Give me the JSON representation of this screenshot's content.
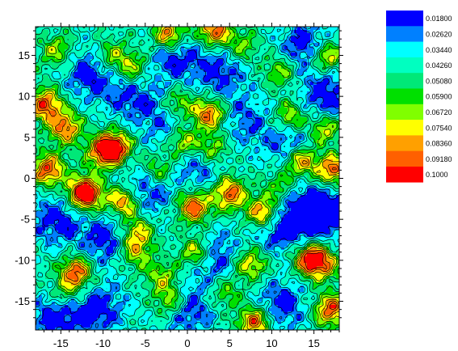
{
  "chart_data": {
    "type": "heatmap",
    "subtype": "filled-contour",
    "title": "",
    "xlabel": "",
    "ylabel": "",
    "xlim": [
      -18,
      18
    ],
    "ylim": [
      -18.5,
      18.5
    ],
    "x_ticks": [
      -15,
      -10,
      -5,
      0,
      5,
      10,
      15
    ],
    "x_tick_labels": [
      "-15",
      "-10",
      "-5",
      "0",
      "5",
      "10",
      "15"
    ],
    "y_ticks": [
      15,
      10,
      5,
      0,
      -5,
      -10,
      -15
    ],
    "y_tick_labels": [
      "15",
      "10",
      "5",
      "0",
      "-5",
      "-10",
      "-15"
    ],
    "grid": false,
    "legend_placement": "top-right",
    "levels": [
      {
        "label": "0.01800",
        "value": 0.018,
        "color": "#0000ff"
      },
      {
        "label": "0.02620",
        "value": 0.0262,
        "color": "#0080ff"
      },
      {
        "label": "0.03440",
        "value": 0.0344,
        "color": "#00ffff"
      },
      {
        "label": "0.04260",
        "value": 0.0426,
        "color": "#00ffc0"
      },
      {
        "label": "0.05080",
        "value": 0.0508,
        "color": "#00e878"
      },
      {
        "label": "0.05900",
        "value": 0.059,
        "color": "#00e000"
      },
      {
        "label": "0.06720",
        "value": 0.0672,
        "color": "#80ff00"
      },
      {
        "label": "0.07540",
        "value": 0.0754,
        "color": "#ffff00"
      },
      {
        "label": "0.08360",
        "value": 0.0836,
        "color": "#ffa000"
      },
      {
        "label": "0.09180",
        "value": 0.0918,
        "color": "#ff6000"
      },
      {
        "label": "0.1000",
        "value": 0.1,
        "color": "#ff0000"
      }
    ],
    "hotspots": [
      {
        "x": -16.8,
        "y": 9,
        "v": 0.1
      },
      {
        "x": -14.5,
        "y": 6.2,
        "v": 0.095
      },
      {
        "x": -8.5,
        "y": 3.8,
        "v": 0.1
      },
      {
        "x": -10,
        "y": 3.2,
        "v": 0.094
      },
      {
        "x": -12.5,
        "y": -1.5,
        "v": 0.088
      },
      {
        "x": -11.8,
        "y": -2.2,
        "v": 0.09
      },
      {
        "x": -7.5,
        "y": -2.8,
        "v": 0.1
      },
      {
        "x": -6,
        "y": -6.5,
        "v": 0.085
      },
      {
        "x": -6.2,
        "y": -9,
        "v": 0.08
      },
      {
        "x": -13.2,
        "y": -11.5,
        "v": 0.1
      },
      {
        "x": -2.2,
        "y": 17.5,
        "v": 0.1
      },
      {
        "x": 3.2,
        "y": 18,
        "v": 0.1
      },
      {
        "x": 2.5,
        "y": 7.8,
        "v": 0.1
      },
      {
        "x": -0.5,
        "y": 4.5,
        "v": 0.09
      },
      {
        "x": 3,
        "y": 3.5,
        "v": 0.08
      },
      {
        "x": 5,
        "y": -1.8,
        "v": 0.1
      },
      {
        "x": 0.8,
        "y": -3.5,
        "v": 0.1
      },
      {
        "x": 9,
        "y": -4.2,
        "v": 0.1
      },
      {
        "x": 13.5,
        "y": 2.2,
        "v": 0.1
      },
      {
        "x": 17.2,
        "y": 1,
        "v": 0.1
      },
      {
        "x": 16.5,
        "y": 14.8,
        "v": 0.09
      },
      {
        "x": 16.2,
        "y": 6,
        "v": 0.085
      },
      {
        "x": 12.2,
        "y": 7.5,
        "v": 0.082
      },
      {
        "x": 14.5,
        "y": -9.8,
        "v": 0.1
      },
      {
        "x": 16,
        "y": -10.5,
        "v": 0.085
      },
      {
        "x": 17,
        "y": -16,
        "v": 0.1
      },
      {
        "x": 1,
        "y": -9,
        "v": 0.092
      },
      {
        "x": 7.5,
        "y": -10.5,
        "v": 0.085
      },
      {
        "x": -2,
        "y": -15,
        "v": 0.082
      },
      {
        "x": 8,
        "y": -17.5,
        "v": 0.1
      },
      {
        "x": -6.5,
        "y": 13.5,
        "v": 0.08
      },
      {
        "x": -15.5,
        "y": 15.5,
        "v": 0.075
      },
      {
        "x": -16.5,
        "y": 1,
        "v": 0.1
      },
      {
        "x": 11,
        "y": 13,
        "v": 0.075
      },
      {
        "x": 6.5,
        "y": 16,
        "v": 0.072
      },
      {
        "x": -1,
        "y": 9,
        "v": 0.078
      },
      {
        "x": -3.5,
        "y": 1,
        "v": 0.078
      },
      {
        "x": 11,
        "y": -1,
        "v": 0.07
      },
      {
        "x": -3,
        "y": -12,
        "v": 0.075
      },
      {
        "x": 4.5,
        "y": -14,
        "v": 0.07
      },
      {
        "x": -14.5,
        "y": -14,
        "v": 0.07
      },
      {
        "x": -9,
        "y": 15,
        "v": 0.075
      }
    ],
    "lowspots": [
      {
        "x": 14,
        "y": 16,
        "v": 0.018
      },
      {
        "x": 16.5,
        "y": 10,
        "v": 0.018
      },
      {
        "x": -11.5,
        "y": 12.8,
        "v": 0.02
      },
      {
        "x": -1.5,
        "y": 15,
        "v": 0.02
      },
      {
        "x": 4,
        "y": 13,
        "v": 0.022
      },
      {
        "x": 1.5,
        "y": 1.5,
        "v": 0.025
      },
      {
        "x": -5,
        "y": -1.5,
        "v": 0.018
      },
      {
        "x": -15.5,
        "y": -5,
        "v": 0.02
      },
      {
        "x": -9.5,
        "y": -7.5,
        "v": 0.02
      },
      {
        "x": 2.8,
        "y": -9.5,
        "v": 0.018
      },
      {
        "x": 11,
        "y": -6,
        "v": 0.018
      },
      {
        "x": 14,
        "y": -4,
        "v": 0.02
      },
      {
        "x": 17,
        "y": -4,
        "v": 0.018
      },
      {
        "x": -15.5,
        "y": -17,
        "v": 0.018
      },
      {
        "x": -10.5,
        "y": -16,
        "v": 0.02
      },
      {
        "x": 0,
        "y": -16,
        "v": 0.02
      },
      {
        "x": 11,
        "y": -15.5,
        "v": 0.02
      },
      {
        "x": 12.5,
        "y": 4,
        "v": 0.02
      },
      {
        "x": -2,
        "y": 6.5,
        "v": 0.025
      },
      {
        "x": -6.5,
        "y": 10,
        "v": 0.024
      },
      {
        "x": 7,
        "y": 7,
        "v": 0.028
      }
    ]
  }
}
